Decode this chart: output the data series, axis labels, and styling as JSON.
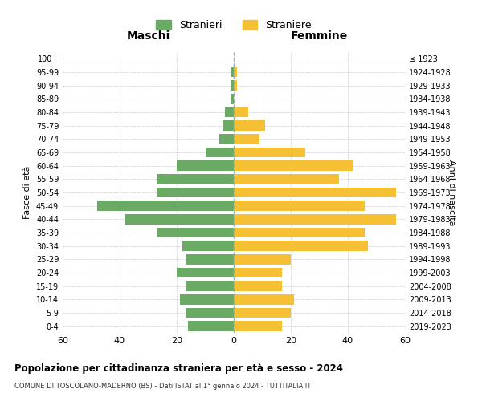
{
  "age_groups": [
    "0-4",
    "5-9",
    "10-14",
    "15-19",
    "20-24",
    "25-29",
    "30-34",
    "35-39",
    "40-44",
    "45-49",
    "50-54",
    "55-59",
    "60-64",
    "65-69",
    "70-74",
    "75-79",
    "80-84",
    "85-89",
    "90-94",
    "95-99",
    "100+"
  ],
  "birth_years": [
    "2019-2023",
    "2014-2018",
    "2009-2013",
    "2004-2008",
    "1999-2003",
    "1994-1998",
    "1989-1993",
    "1984-1988",
    "1979-1983",
    "1974-1978",
    "1969-1973",
    "1964-1968",
    "1959-1963",
    "1954-1958",
    "1949-1953",
    "1944-1948",
    "1939-1943",
    "1934-1938",
    "1929-1933",
    "1924-1928",
    "≤ 1923"
  ],
  "maschi": [
    16,
    17,
    19,
    17,
    20,
    17,
    18,
    27,
    38,
    48,
    27,
    27,
    20,
    10,
    5,
    4,
    3,
    1,
    1,
    1,
    0
  ],
  "femmine": [
    17,
    20,
    21,
    17,
    17,
    20,
    47,
    46,
    57,
    46,
    57,
    37,
    42,
    25,
    9,
    11,
    5,
    0,
    1,
    1,
    0
  ],
  "male_color": "#6aaa64",
  "female_color": "#f5c033",
  "background_color": "#ffffff",
  "grid_color": "#cccccc",
  "title": "Popolazione per cittadinanza straniera per età e sesso - 2024",
  "subtitle": "COMUNE DI TOSCOLANO-MADERNO (BS) - Dati ISTAT al 1° gennaio 2024 - TUTTITALIA.IT",
  "xlabel_left": "Maschi",
  "xlabel_right": "Femmine",
  "ylabel_left": "Fasce di età",
  "ylabel_right": "Anni di nascita",
  "legend_stranieri": "Stranieri",
  "legend_straniere": "Straniere",
  "xlim": 60,
  "bar_height": 0.75
}
